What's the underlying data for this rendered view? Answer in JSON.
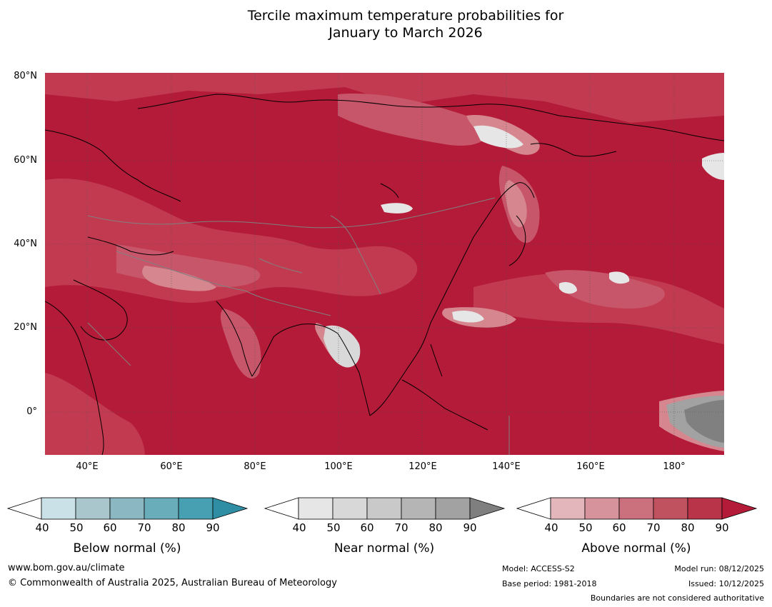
{
  "title": {
    "line1": "Tercile maximum temperature probabilities for",
    "line2": "January to March 2026"
  },
  "map": {
    "lat_labels": [
      "80°N",
      "60°N",
      "40°N",
      "20°N",
      "0°"
    ],
    "lon_labels": [
      "40°E",
      "60°E",
      "80°E",
      "100°E",
      "120°E",
      "140°E",
      "160°E",
      "180°"
    ],
    "colors": {
      "above_base": "#b31b38",
      "above_80": "#c23a4f",
      "above_70": "#c8566a",
      "above_60": "#d6868f",
      "near_50": "#d9d9d9",
      "near_90": "#808080"
    }
  },
  "colorbars": [
    {
      "title": "Below normal (%)",
      "ticks": [
        "40",
        "50",
        "60",
        "70",
        "80",
        "90"
      ],
      "colors": [
        "#ffffff",
        "#c9e1e7",
        "#a8c6cc",
        "#8ab7c1",
        "#6aadba",
        "#46a0b1",
        "#2f8ea3"
      ]
    },
    {
      "title": "Near normal (%)",
      "ticks": [
        "40",
        "50",
        "60",
        "70",
        "80",
        "90"
      ],
      "colors": [
        "#ffffff",
        "#e6e6e6",
        "#d8d8d8",
        "#c9c9c9",
        "#b5b5b5",
        "#a2a2a2",
        "#7f7f7f"
      ]
    },
    {
      "title": "Above normal (%)",
      "ticks": [
        "40",
        "50",
        "60",
        "70",
        "80",
        "90"
      ],
      "colors": [
        "#ffffff",
        "#e3b6bc",
        "#d7939b",
        "#cb707d",
        "#c0525f",
        "#b93448",
        "#b31b38"
      ]
    }
  ],
  "footer": {
    "url": "www.bom.gov.au/climate",
    "copyright": "© Commonwealth of Australia 2025, Australian Bureau of Meteorology",
    "model": "Model: ACCESS-S2",
    "base_period": "Base period: 1981-2018",
    "model_run": "Model run: 08/12/2025",
    "issued": "Issued: 10/12/2025",
    "boundaries": "Boundaries are not considered authoritative"
  }
}
